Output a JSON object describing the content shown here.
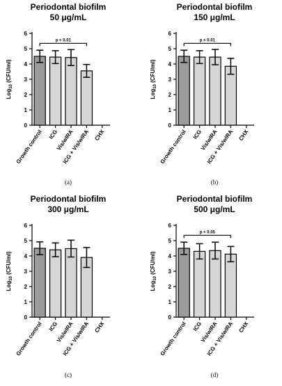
{
  "chart_data": [
    {
      "type": "bar",
      "title": "Periodontal biofilm",
      "subtitle": "50 μg/mL",
      "panel_label": "(a)",
      "ylabel_main": "Log",
      "ylabel_sub": "10",
      "ylabel_unit": " (CFU/ml)",
      "ylim": [
        0,
        6
      ],
      "yticks": [
        "0",
        "1",
        "2",
        "3",
        "4",
        "5",
        "6"
      ],
      "categories": [
        "Growth control",
        "ICG",
        "Vis/wIRA",
        "ICG + Vis/wIRA",
        "CHX"
      ],
      "values": [
        4.5,
        4.45,
        4.42,
        3.55,
        0
      ],
      "errors": [
        0.4,
        0.42,
        0.52,
        0.42,
        0
      ],
      "bar_colors": [
        "#9b9b9b",
        "#d6d6d6",
        "#d6d6d6",
        "#d6d6d6",
        "#d6d6d6"
      ],
      "significance": {
        "text": "p < 0.01",
        "from": 0,
        "to": 3,
        "y": 5.35
      }
    },
    {
      "type": "bar",
      "title": "Periodontal biofilm",
      "subtitle": "150 μg/mL",
      "panel_label": "(b)",
      "ylabel_main": "Log",
      "ylabel_sub": "10",
      "ylabel_unit": " (CFU/ml)",
      "ylim": [
        0,
        6
      ],
      "yticks": [
        "0",
        "1",
        "2",
        "3",
        "4",
        "5",
        "6"
      ],
      "categories": [
        "Growth control",
        "ICG",
        "Vis/wIRA",
        "ICG + Vis/wIRA",
        "CHX"
      ],
      "values": [
        4.5,
        4.45,
        4.45,
        3.85,
        0
      ],
      "errors": [
        0.4,
        0.42,
        0.5,
        0.52,
        0
      ],
      "bar_colors": [
        "#9b9b9b",
        "#d6d6d6",
        "#d6d6d6",
        "#d6d6d6",
        "#d6d6d6"
      ],
      "significance": {
        "text": "p < 0.01",
        "from": 0,
        "to": 3,
        "y": 5.35
      }
    },
    {
      "type": "bar",
      "title": "Periodontal biofilm",
      "subtitle": "300 μg/mL",
      "panel_label": "(c)",
      "ylabel_main": "Log",
      "ylabel_sub": "10",
      "ylabel_unit": " (CFU/ml)",
      "ylim": [
        0,
        6
      ],
      "yticks": [
        "0",
        "1",
        "2",
        "3",
        "4",
        "5",
        "6"
      ],
      "categories": [
        "Growth control",
        "ICG",
        "Vis/wIRA",
        "ICG + Vis/wIRA",
        "CHX"
      ],
      "values": [
        4.5,
        4.4,
        4.48,
        3.9,
        0
      ],
      "errors": [
        0.42,
        0.45,
        0.55,
        0.65,
        0
      ],
      "bar_colors": [
        "#9b9b9b",
        "#d6d6d6",
        "#d6d6d6",
        "#d6d6d6",
        "#d6d6d6"
      ],
      "significance": null
    },
    {
      "type": "bar",
      "title": "Periodontal biofilm",
      "subtitle": "500 μg/mL",
      "panel_label": "(d)",
      "ylabel_main": "Log",
      "ylabel_sub": "10",
      "ylabel_unit": " (CFU/ml)",
      "ylim": [
        0,
        6
      ],
      "yticks": [
        "0",
        "1",
        "2",
        "3",
        "4",
        "5",
        "6"
      ],
      "categories": [
        "Growth control",
        "ICG",
        "Vis/wIRA",
        "ICG + Vis/wIRA",
        "CHX"
      ],
      "values": [
        4.5,
        4.3,
        4.35,
        4.12,
        0
      ],
      "errors": [
        0.4,
        0.5,
        0.55,
        0.5,
        0
      ],
      "bar_colors": [
        "#9b9b9b",
        "#d6d6d6",
        "#d6d6d6",
        "#d6d6d6",
        "#d6d6d6"
      ],
      "significance": {
        "text": "p < 0.05",
        "from": 0,
        "to": 3,
        "y": 5.35
      }
    }
  ]
}
